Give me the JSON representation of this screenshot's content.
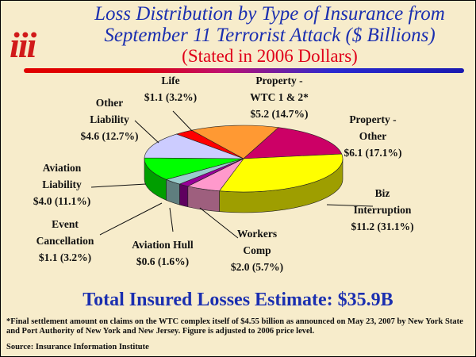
{
  "header": {
    "logo_text": "iii",
    "title_line1": "Loss Distribution by Type of Insurance from",
    "title_line2": "September 11 Terrorist Attack ($ Billions)",
    "subtitle": "(Stated in 2006 Dollars)"
  },
  "chart_data": {
    "type": "pie",
    "title": "Loss Distribution by Type of Insurance from September 11 Terrorist Attack ($ Billions)",
    "subtitle": "(Stated in 2006 Dollars)",
    "slices": [
      {
        "name": "Life",
        "value": 1.1,
        "percent": "3.2%",
        "label_line1": "Life",
        "label_line2": "$1.1 (3.2%)",
        "color": "#ff0000"
      },
      {
        "name": "Property - WTC 1 & 2*",
        "value": 5.2,
        "percent": "14.7%",
        "label_line1": "Property -",
        "label_line2": "WTC 1 & 2*",
        "label_line3": "$5.2 (14.7%)",
        "color": "#ff9933"
      },
      {
        "name": "Property - Other",
        "value": 6.1,
        "percent": "17.1%",
        "label_line1": "Property -",
        "label_line2": "Other",
        "label_line3": "$6.1 (17.1%)",
        "color": "#cc0066"
      },
      {
        "name": "Biz Interruption",
        "value": 11.2,
        "percent": "31.1%",
        "label_line1": "Biz",
        "label_line2": "Interruption",
        "label_line3": "$11.2 (31.1%)",
        "color": "#ffff00"
      },
      {
        "name": "Workers Comp",
        "value": 2.0,
        "percent": "5.7%",
        "label_line1": "Workers",
        "label_line2": "Comp",
        "label_line3": "$2.0 (5.7%)",
        "color": "#ff99cc"
      },
      {
        "name": "Aviation Hull",
        "value": 0.6,
        "percent": "1.6%",
        "label_line1": "Aviation Hull",
        "label_line2": "$0.6 (1.6%)",
        "color": "#990099"
      },
      {
        "name": "Event Cancellation",
        "value": 1.1,
        "percent": "3.2%",
        "label_line1": "Event",
        "label_line2": "Cancellation",
        "label_line3": "$1.1 (3.2%)",
        "color": "#99cccc"
      },
      {
        "name": "Aviation Liability",
        "value": 4.0,
        "percent": "11.1%",
        "label_line1": "Aviation",
        "label_line2": "Liability",
        "label_line3": "$4.0 (11.1%)",
        "color": "#00ff00"
      },
      {
        "name": "Other Liability",
        "value": 4.6,
        "percent": "12.7%",
        "label_line1": "Other",
        "label_line2": "Liability",
        "label_line3": "$4.6 (12.7%)",
        "color": "#ccccff"
      }
    ],
    "total_label": "Total Insured Losses Estimate: $35.9B"
  },
  "footnote": "*Final settlement amount on claims on the WTC complex itself of $4.55 billion as announced on May 23, 2007 by New York State and Port Authority of New York and New Jersey.  Figure is adjusted to 2006 price level.",
  "source": "Source: Insurance Information Institute"
}
